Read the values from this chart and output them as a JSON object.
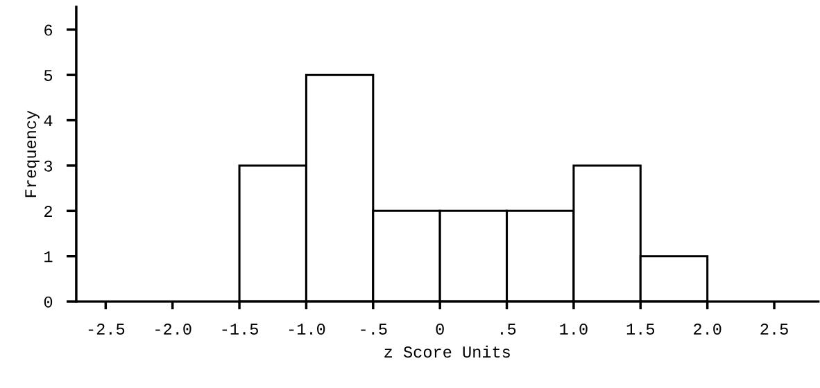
{
  "chart_data": {
    "type": "histogram",
    "xlabel": "z Score Units",
    "ylabel": "Frequency",
    "bins": [
      -1.5,
      -1.0,
      -0.5,
      0,
      0.5,
      1.0,
      1.5,
      2.0
    ],
    "values": [
      3,
      5,
      2,
      2,
      2,
      3,
      1
    ],
    "color": "#ffffff",
    "xlim": [
      -2.72,
      2.83
    ],
    "ylim": [
      0,
      6.5
    ],
    "xticks": [
      {
        "value": -2.5,
        "label": "-2.5"
      },
      {
        "value": -2.0,
        "label": "-2.0"
      },
      {
        "value": -1.5,
        "label": "-1.5"
      },
      {
        "value": -1.0,
        "label": "-1.0"
      },
      {
        "value": -0.5,
        "label": "-.5"
      },
      0,
      {
        "value": 0.5,
        "label": ".5"
      },
      {
        "value": 1.0,
        "label": "1.0"
      },
      {
        "value": 1.5,
        "label": "1.5"
      },
      {
        "value": 2.0,
        "label": "2.0"
      },
      {
        "value": 2.5,
        "label": "2.5"
      }
    ],
    "yticks": [
      0,
      1,
      2,
      3,
      4,
      5,
      6
    ],
    "grid": false
  }
}
